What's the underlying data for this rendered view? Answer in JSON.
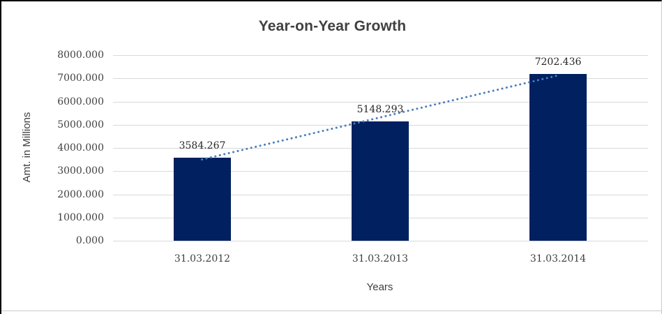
{
  "chart_data": {
    "type": "bar",
    "title": "Year-on-Year Growth",
    "categories": [
      "31.03.2012",
      "31.03.2013",
      "31.03.2014"
    ],
    "values": [
      3584.267,
      5148.293,
      7202.436
    ],
    "data_labels": [
      "3584.267",
      "5148.293",
      "7202.436"
    ],
    "xlabel": "Years",
    "ylabel": "Amt. in Millions",
    "ylim": [
      0,
      8000
    ],
    "ytick_step": 1000,
    "ytick_labels": [
      "0.000",
      "1000.000",
      "2000.000",
      "3000.000",
      "4000.000",
      "5000.000",
      "6000.000",
      "7000.000",
      "8000.000"
    ],
    "grid": "horizontal-gridlines",
    "legend": "none",
    "trendline": {
      "type": "linear",
      "style": "dotted",
      "color": "#4a7ebc"
    },
    "colors": {
      "bar": "#002060",
      "gridline": "#d9d9d9",
      "title_text": "#404040",
      "axis_text": "#3f3f3f",
      "data_label_text": "#262626",
      "background": "#ffffff"
    }
  }
}
